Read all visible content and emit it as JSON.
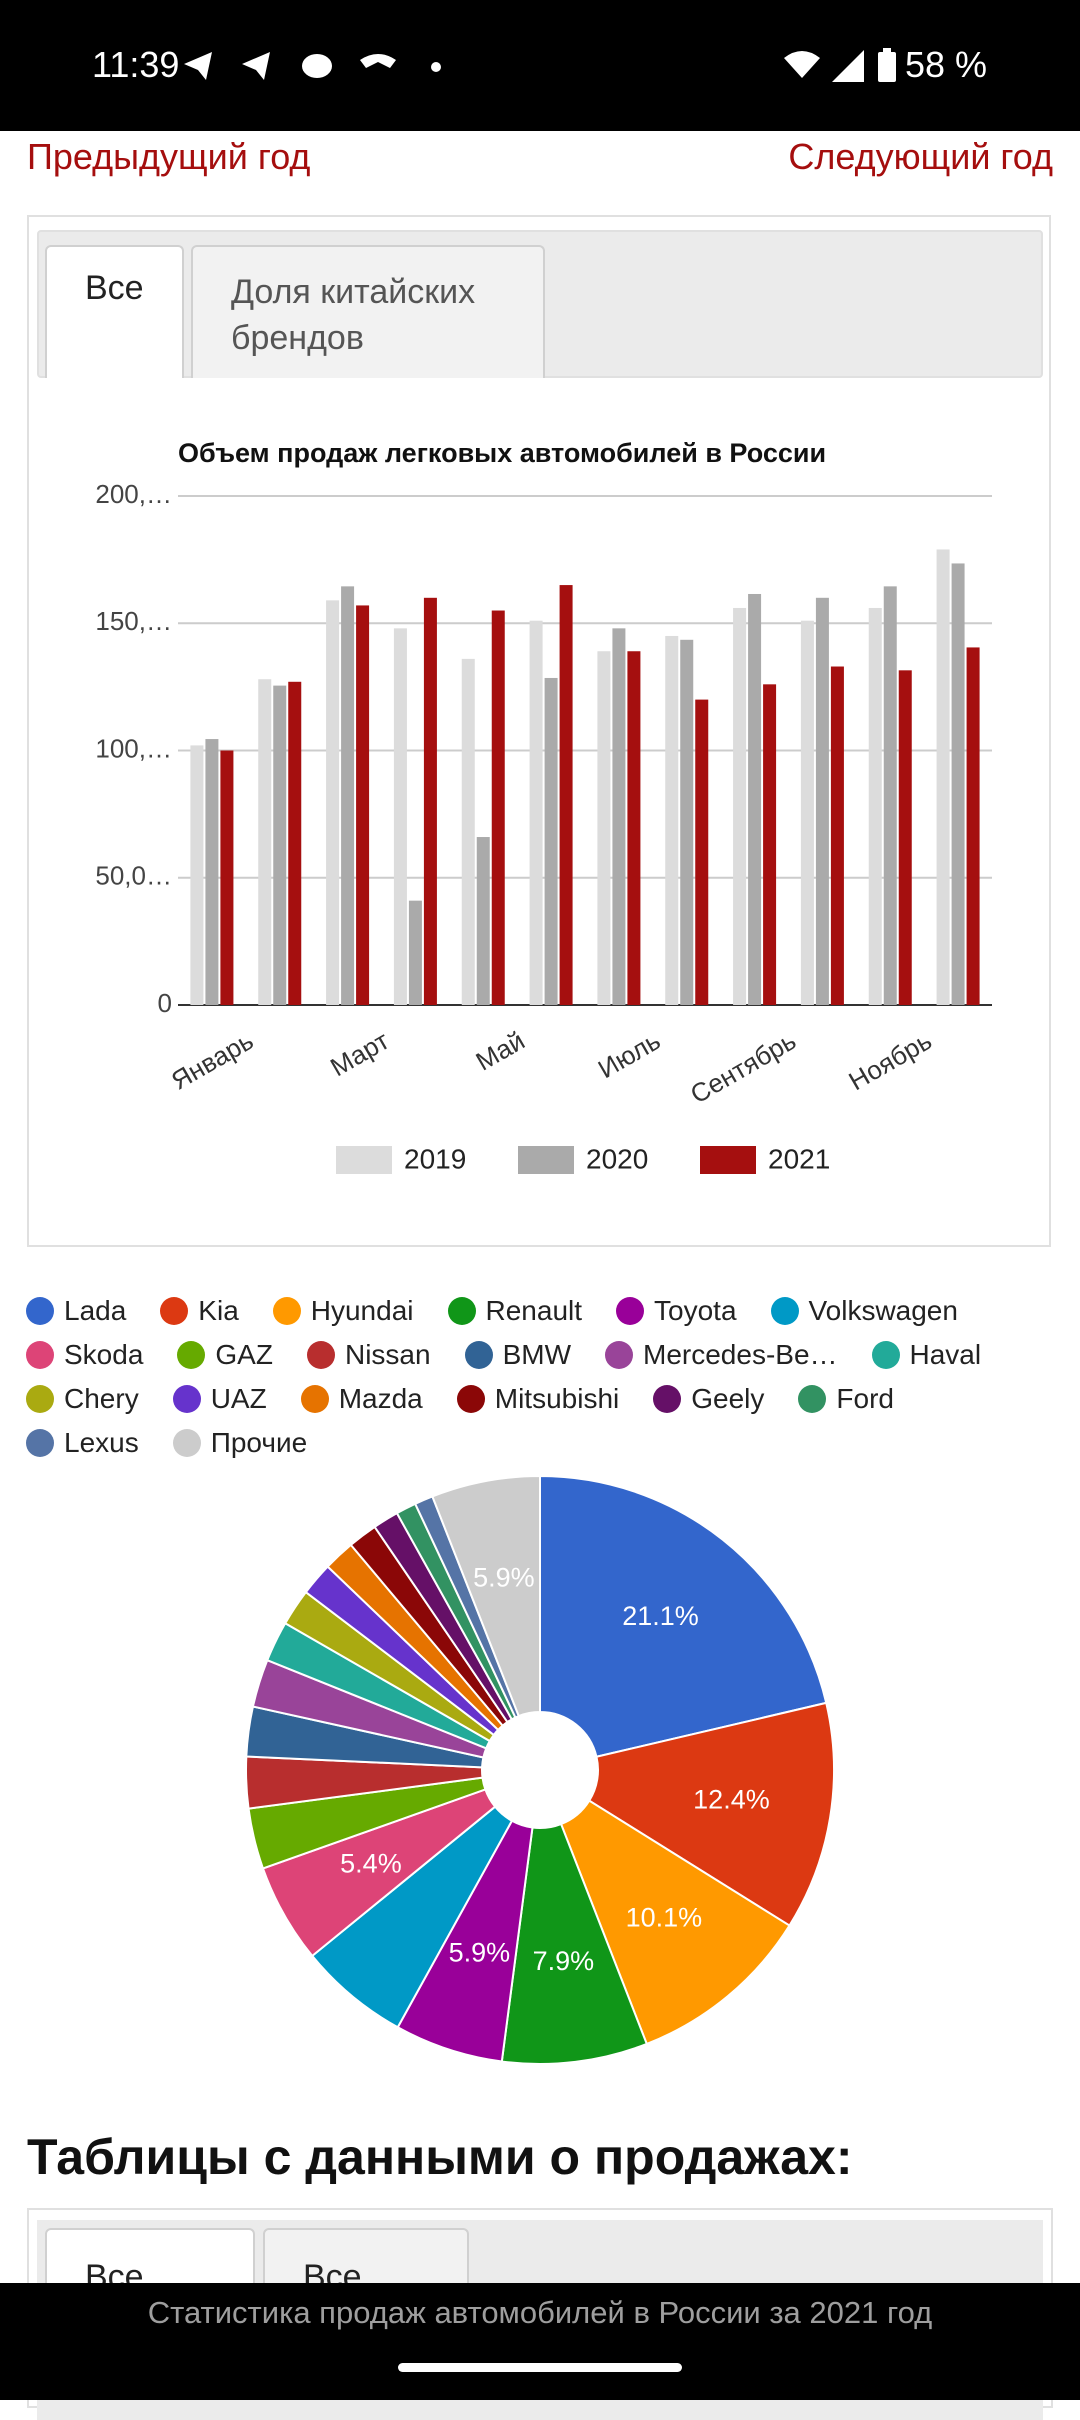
{
  "status_bar": {
    "time": "11:39",
    "battery": "58 %"
  },
  "nav": {
    "prev": "Предыдущий год",
    "next": "Следующий год"
  },
  "tabs": [
    "Все",
    "Доля китайских брендов"
  ],
  "chart_data": [
    {
      "type": "bar",
      "title": "Объем продаж легковых автомобилей в России",
      "categories": [
        "Январь",
        null,
        "Март",
        null,
        "Май",
        null,
        "Июль",
        null,
        "Сентябрь",
        null,
        "Ноябрь",
        null
      ],
      "series": [
        {
          "name": "2019",
          "color": "#dcdcdc",
          "values": [
            102000,
            128000,
            159000,
            148000,
            136000,
            151000,
            139000,
            145000,
            156000,
            151000,
            156000,
            179000
          ]
        },
        {
          "name": "2020",
          "color": "#aaaaaa",
          "values": [
            104500,
            125500,
            164500,
            41000,
            66000,
            128500,
            148000,
            143500,
            161500,
            160000,
            164500,
            173500
          ]
        },
        {
          "name": "2021",
          "color": "#a50f0f",
          "values": [
            100000,
            127000,
            157000,
            160000,
            155000,
            165000,
            139000,
            120000,
            126000,
            133000,
            131500,
            140500
          ]
        }
      ],
      "ylim": [
        0,
        200000
      ],
      "yticks": [
        0,
        {
          "value": 50000,
          "label": "50,0…"
        },
        {
          "value": 100000,
          "label": "100,…"
        },
        {
          "value": 150000,
          "label": "150,…"
        },
        {
          "value": 200000,
          "label": "200,…"
        }
      ],
      "grid": true,
      "legend": "bottom"
    },
    {
      "type": "pie",
      "categories": [
        "Lada",
        "Kia",
        "Hyundai",
        "Renault",
        "Toyota",
        "Volkswagen",
        "Skoda",
        "GAZ",
        "Nissan",
        "BMW",
        "Mercedes-Be…",
        "Haval",
        "Chery",
        "UAZ",
        "Mazda",
        "Mitsubishi",
        "Geely",
        "Ford",
        "Lexus",
        "Прочие"
      ],
      "colors": [
        "#3366cc",
        "#dc3912",
        "#ff9900",
        "#109618",
        "#990099",
        "#0099c6",
        "#dd4477",
        "#66aa00",
        "#b82e2e",
        "#316395",
        "#994499",
        "#22aa99",
        "#aaaa11",
        "#6633cc",
        "#e67300",
        "#8b0707",
        "#651067",
        "#329262",
        "#5574a6",
        "#cccccc"
      ],
      "values": [
        21.1,
        12.4,
        10.1,
        7.9,
        5.9,
        6.0,
        5.4,
        3.3,
        2.8,
        2.7,
        2.6,
        2.2,
        2.0,
        1.8,
        1.7,
        1.6,
        1.4,
        1.1,
        1.0,
        5.9
      ],
      "value_labels": [
        "21.1%",
        "12.4%",
        "10.1%",
        "7.9%",
        "5.9%",
        null,
        "5.4%",
        null,
        null,
        null,
        null,
        null,
        null,
        null,
        null,
        null,
        null,
        null,
        null,
        "5.9%"
      ],
      "legend": "top"
    }
  ],
  "section_title": "Таблицы с данными о продажах:",
  "table_tabs": [
    "Все",
    "Все"
  ],
  "footer": "Статистика продаж автомобилей в России за 2021 год"
}
